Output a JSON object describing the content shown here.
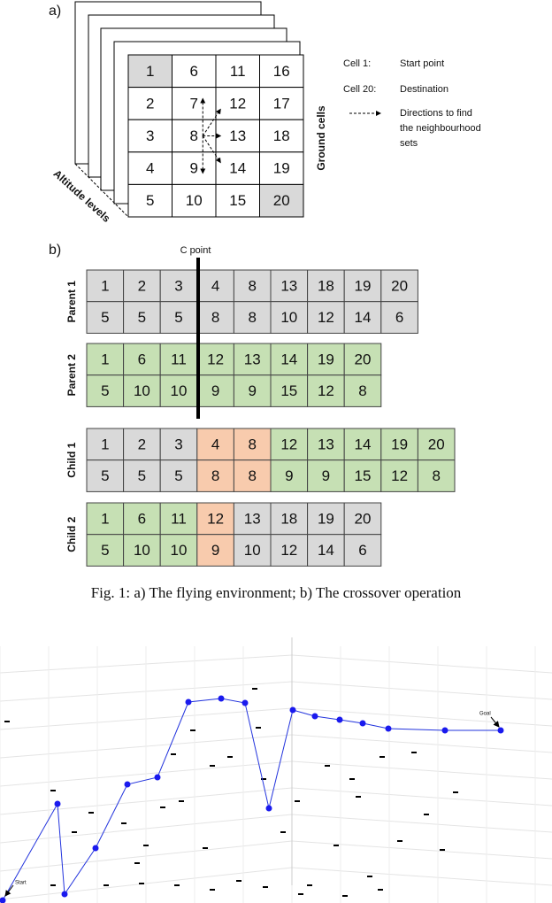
{
  "figure_a": {
    "label": "a)",
    "grid": [
      [
        1,
        6,
        11,
        16
      ],
      [
        2,
        7,
        12,
        17
      ],
      [
        3,
        8,
        13,
        18
      ],
      [
        4,
        9,
        14,
        19
      ],
      [
        5,
        10,
        15,
        20
      ]
    ],
    "grid_colors": [
      [
        "#d9d9d9",
        "#fff",
        "#fff",
        "#fff"
      ],
      [
        "#fff",
        "#fff",
        "#fff",
        "#fff"
      ],
      [
        "#fff",
        "#fff",
        "#fff",
        "#fff"
      ],
      [
        "#fff",
        "#fff",
        "#fff",
        "#fff"
      ],
      [
        "#fff",
        "#fff",
        "#fff",
        "#d9d9d9"
      ]
    ],
    "legend": [
      {
        "key": "Cell 1:",
        "text": "Start point"
      },
      {
        "key": "Cell 20:",
        "text": "Destination"
      }
    ],
    "arrow_legend": [
      "Directions to find",
      "the neighbourhood",
      "sets"
    ],
    "ground_label": "Ground cells",
    "altitude_label": "Altitude levels"
  },
  "figure_b": {
    "label": "b)",
    "cut_label": "C point",
    "rows": [
      {
        "name": "Parent 1",
        "top": [
          1,
          2,
          3,
          4,
          8,
          13,
          18,
          19,
          20
        ],
        "bottom": [
          5,
          5,
          5,
          8,
          8,
          10,
          12,
          14,
          6
        ],
        "colors": [
          "#d9d9d9",
          "#d9d9d9",
          "#d9d9d9",
          "#d9d9d9",
          "#d9d9d9",
          "#d9d9d9",
          "#d9d9d9",
          "#d9d9d9",
          "#d9d9d9"
        ]
      },
      {
        "name": "Parent 2",
        "top": [
          1,
          6,
          11,
          12,
          13,
          14,
          19,
          20
        ],
        "bottom": [
          5,
          10,
          10,
          9,
          9,
          15,
          12,
          8
        ],
        "colors": [
          "#c6e0b4",
          "#c6e0b4",
          "#c6e0b4",
          "#c6e0b4",
          "#c6e0b4",
          "#c6e0b4",
          "#c6e0b4",
          "#c6e0b4"
        ]
      },
      {
        "name": "Child 1",
        "top": [
          1,
          2,
          3,
          4,
          8,
          12,
          13,
          14,
          19,
          20
        ],
        "bottom": [
          5,
          5,
          5,
          8,
          8,
          9,
          9,
          15,
          12,
          8
        ],
        "colors": [
          "#d9d9d9",
          "#d9d9d9",
          "#d9d9d9",
          "#f8cbad",
          "#f8cbad",
          "#c6e0b4",
          "#c6e0b4",
          "#c6e0b4",
          "#c6e0b4",
          "#c6e0b4"
        ]
      },
      {
        "name": "Child 2",
        "top": [
          1,
          6,
          11,
          12,
          13,
          18,
          19,
          20
        ],
        "bottom": [
          5,
          10,
          10,
          9,
          10,
          12,
          14,
          6
        ],
        "colors": [
          "#c6e0b4",
          "#c6e0b4",
          "#c6e0b4",
          "#f8cbad",
          "#d9d9d9",
          "#d9d9d9",
          "#d9d9d9",
          "#d9d9d9"
        ]
      }
    ]
  },
  "caption": "Fig. 1: a) The flying environment; b) The crossover operation",
  "plot3d": {
    "start_label": "Start",
    "goal_label": "Goal"
  }
}
